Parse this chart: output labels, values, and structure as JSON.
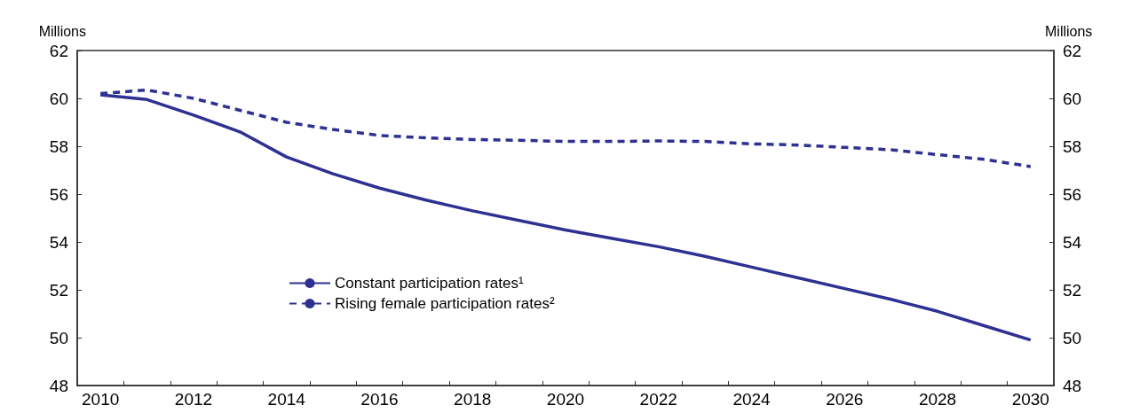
{
  "chart_data": {
    "type": "line",
    "ylabel": "Millions",
    "y2label": "Millions",
    "categories": [
      "2010",
      null,
      "2012",
      null,
      "2014",
      null,
      "2016",
      null,
      "2018",
      null,
      "2020",
      null,
      "2022",
      null,
      "2024",
      null,
      "2026",
      null,
      "2028",
      null,
      "2030"
    ],
    "series": [
      {
        "name": "Constant participation rates¹",
        "color": "#2e3192",
        "line_style": "solid",
        "values": [
          60.15,
          59.95,
          59.3,
          58.6,
          57.55,
          56.85,
          56.25,
          55.75,
          55.3,
          54.9,
          54.5,
          54.15,
          53.8,
          53.4,
          52.95,
          52.5,
          52.05,
          51.6,
          51.1,
          50.5,
          49.9
        ]
      },
      {
        "name": "Rising female participation rates²",
        "color": "#2e3192",
        "line_style": "dashed",
        "values": [
          60.2,
          60.35,
          60.0,
          59.5,
          59.0,
          58.7,
          58.45,
          58.35,
          58.28,
          58.25,
          58.2,
          58.2,
          58.22,
          58.2,
          58.1,
          58.05,
          57.95,
          57.85,
          57.65,
          57.45,
          57.15
        ]
      }
    ],
    "ylim": [
      48,
      62
    ],
    "yticks": [
      48,
      50,
      52,
      54,
      56,
      58,
      60,
      62
    ],
    "y2lim": [
      48,
      62
    ],
    "y2ticks": [
      48,
      50,
      52,
      54,
      56,
      58,
      60,
      62
    ],
    "grid": false,
    "legend": "bottom left",
    "marker": "none"
  }
}
